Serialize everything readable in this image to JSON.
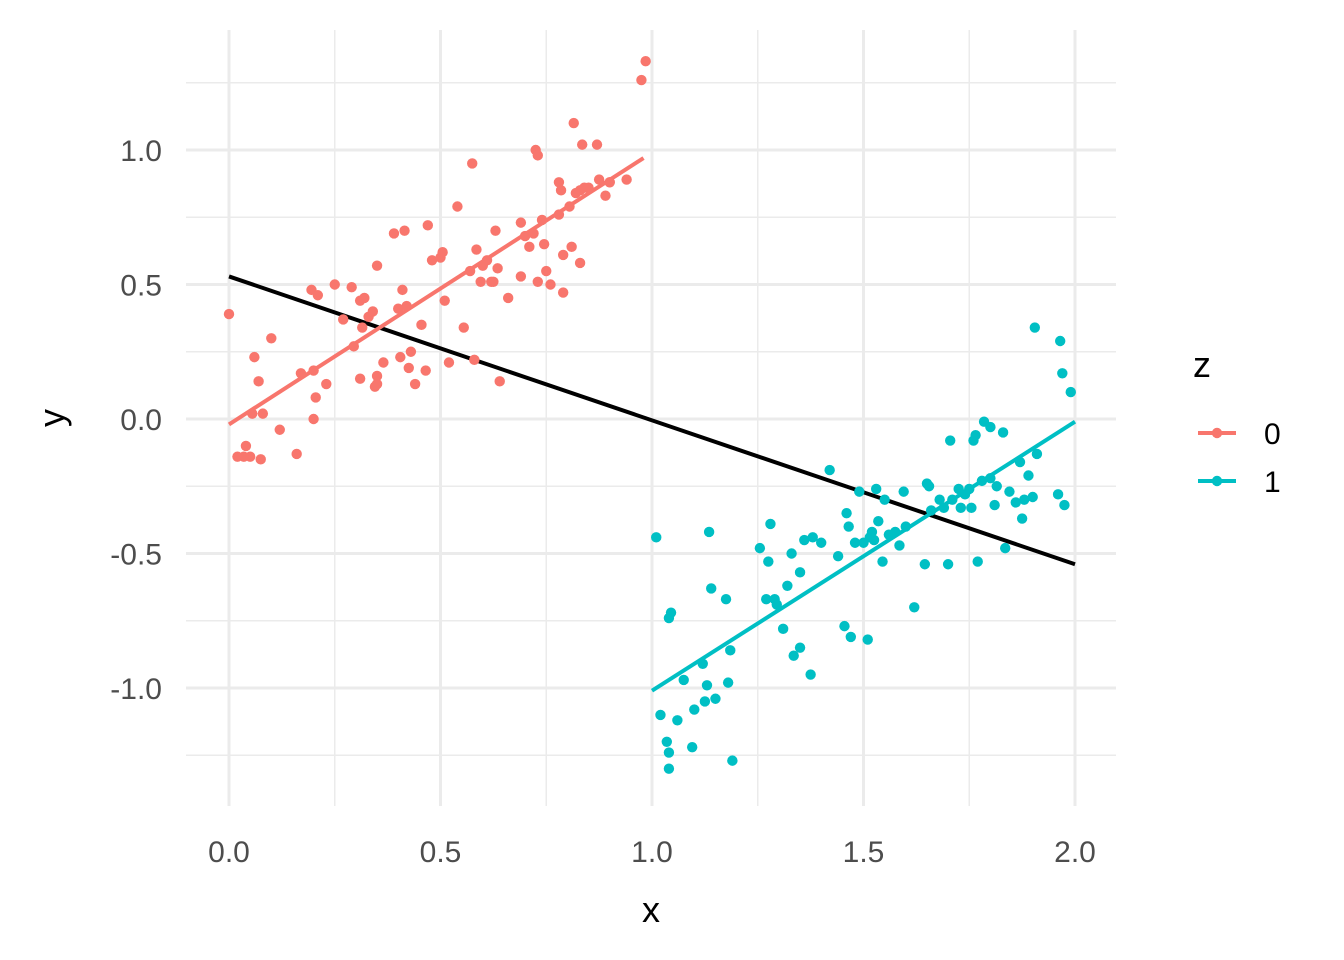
{
  "chart_data": {
    "type": "scatter",
    "title": "",
    "xlabel": "x",
    "ylabel": "y",
    "xlim": [
      0,
      2
    ],
    "ylim": [
      -1.32,
      1.36
    ],
    "x_ticks": [
      "0.0",
      "0.5",
      "1.0",
      "1.5",
      "2.0"
    ],
    "x_tick_values": [
      0,
      0.5,
      1.0,
      1.5,
      2.0
    ],
    "y_ticks": [
      "1.0",
      "0.5",
      "0.0",
      "-0.5",
      "-1.0"
    ],
    "y_tick_values": [
      1.0,
      0.5,
      0.0,
      -0.5,
      -1.0
    ],
    "grid": true,
    "legend": {
      "title": "z",
      "position": "right",
      "entries": [
        "0",
        "1"
      ]
    },
    "colors": {
      "0": "#F8766D",
      "1": "#00BFC4",
      "overall": "#000000"
    },
    "series": [
      {
        "name": "0",
        "points": [
          [
            0.0,
            0.39
          ],
          [
            0.02,
            -0.14
          ],
          [
            0.035,
            -0.14
          ],
          [
            0.04,
            -0.1
          ],
          [
            0.05,
            -0.14
          ],
          [
            0.055,
            0.02
          ],
          [
            0.06,
            0.23
          ],
          [
            0.07,
            0.14
          ],
          [
            0.075,
            -0.15
          ],
          [
            0.08,
            0.02
          ],
          [
            0.1,
            0.3
          ],
          [
            0.12,
            -0.04
          ],
          [
            0.16,
            -0.13
          ],
          [
            0.17,
            0.17
          ],
          [
            0.195,
            0.48
          ],
          [
            0.2,
            0.0
          ],
          [
            0.2,
            0.18
          ],
          [
            0.205,
            0.08
          ],
          [
            0.21,
            0.46
          ],
          [
            0.23,
            0.13
          ],
          [
            0.25,
            0.5
          ],
          [
            0.27,
            0.37
          ],
          [
            0.29,
            0.49
          ],
          [
            0.295,
            0.27
          ],
          [
            0.31,
            0.44
          ],
          [
            0.31,
            0.15
          ],
          [
            0.315,
            0.34
          ],
          [
            0.32,
            0.45
          ],
          [
            0.33,
            0.38
          ],
          [
            0.34,
            0.4
          ],
          [
            0.345,
            0.12
          ],
          [
            0.35,
            0.13
          ],
          [
            0.35,
            0.16
          ],
          [
            0.35,
            0.57
          ],
          [
            0.365,
            0.21
          ],
          [
            0.39,
            0.69
          ],
          [
            0.4,
            0.41
          ],
          [
            0.405,
            0.23
          ],
          [
            0.41,
            0.48
          ],
          [
            0.415,
            0.7
          ],
          [
            0.42,
            0.42
          ],
          [
            0.425,
            0.19
          ],
          [
            0.43,
            0.25
          ],
          [
            0.44,
            0.13
          ],
          [
            0.455,
            0.35
          ],
          [
            0.465,
            0.18
          ],
          [
            0.47,
            0.72
          ],
          [
            0.48,
            0.59
          ],
          [
            0.5,
            0.6
          ],
          [
            0.505,
            0.62
          ],
          [
            0.51,
            0.44
          ],
          [
            0.52,
            0.21
          ],
          [
            0.54,
            0.79
          ],
          [
            0.555,
            0.34
          ],
          [
            0.57,
            0.55
          ],
          [
            0.575,
            0.95
          ],
          [
            0.58,
            0.22
          ],
          [
            0.585,
            0.63
          ],
          [
            0.595,
            0.51
          ],
          [
            0.6,
            0.57
          ],
          [
            0.61,
            0.59
          ],
          [
            0.62,
            0.51
          ],
          [
            0.625,
            0.51
          ],
          [
            0.63,
            0.7
          ],
          [
            0.635,
            0.56
          ],
          [
            0.64,
            0.14
          ],
          [
            0.66,
            0.45
          ],
          [
            0.69,
            0.73
          ],
          [
            0.69,
            0.53
          ],
          [
            0.7,
            0.68
          ],
          [
            0.71,
            0.64
          ],
          [
            0.72,
            0.69
          ],
          [
            0.725,
            1.0
          ],
          [
            0.73,
            0.98
          ],
          [
            0.73,
            0.51
          ],
          [
            0.74,
            0.74
          ],
          [
            0.745,
            0.65
          ],
          [
            0.75,
            0.55
          ],
          [
            0.76,
            0.5
          ],
          [
            0.78,
            0.88
          ],
          [
            0.78,
            0.76
          ],
          [
            0.785,
            0.85
          ],
          [
            0.79,
            0.47
          ],
          [
            0.79,
            0.61
          ],
          [
            0.805,
            0.79
          ],
          [
            0.81,
            0.64
          ],
          [
            0.815,
            1.1
          ],
          [
            0.82,
            0.84
          ],
          [
            0.83,
            0.85
          ],
          [
            0.83,
            0.58
          ],
          [
            0.835,
            1.02
          ],
          [
            0.84,
            0.86
          ],
          [
            0.85,
            0.86
          ],
          [
            0.87,
            1.02
          ],
          [
            0.875,
            0.89
          ],
          [
            0.89,
            0.83
          ],
          [
            0.9,
            0.88
          ],
          [
            0.9,
            0.88
          ],
          [
            0.94,
            0.89
          ],
          [
            0.975,
            1.26
          ],
          [
            0.985,
            1.33
          ]
        ],
        "fit": {
          "x": [
            0.0,
            0.98
          ],
          "y": [
            -0.02,
            0.97
          ]
        }
      },
      {
        "name": "1",
        "points": [
          [
            1.01,
            -0.44
          ],
          [
            1.02,
            -1.1
          ],
          [
            1.035,
            -1.2
          ],
          [
            1.04,
            -1.3
          ],
          [
            1.04,
            -1.24
          ],
          [
            1.04,
            -0.74
          ],
          [
            1.045,
            -0.72
          ],
          [
            1.06,
            -1.12
          ],
          [
            1.075,
            -0.97
          ],
          [
            1.095,
            -1.22
          ],
          [
            1.1,
            -1.08
          ],
          [
            1.12,
            -0.91
          ],
          [
            1.125,
            -1.05
          ],
          [
            1.13,
            -0.99
          ],
          [
            1.135,
            -0.42
          ],
          [
            1.14,
            -0.63
          ],
          [
            1.15,
            -1.04
          ],
          [
            1.175,
            -0.67
          ],
          [
            1.18,
            -0.98
          ],
          [
            1.185,
            -0.86
          ],
          [
            1.19,
            -1.27
          ],
          [
            1.255,
            -0.48
          ],
          [
            1.27,
            -0.67
          ],
          [
            1.275,
            -0.53
          ],
          [
            1.28,
            -0.39
          ],
          [
            1.29,
            -0.67
          ],
          [
            1.295,
            -0.69
          ],
          [
            1.31,
            -0.78
          ],
          [
            1.32,
            -0.62
          ],
          [
            1.33,
            -0.5
          ],
          [
            1.335,
            -0.88
          ],
          [
            1.35,
            -0.85
          ],
          [
            1.35,
            -0.57
          ],
          [
            1.36,
            -0.45
          ],
          [
            1.375,
            -0.95
          ],
          [
            1.38,
            -0.44
          ],
          [
            1.4,
            -0.46
          ],
          [
            1.42,
            -0.19
          ],
          [
            1.44,
            -0.51
          ],
          [
            1.455,
            -0.77
          ],
          [
            1.46,
            -0.35
          ],
          [
            1.465,
            -0.4
          ],
          [
            1.47,
            -0.81
          ],
          [
            1.48,
            -0.46
          ],
          [
            1.49,
            -0.27
          ],
          [
            1.5,
            -0.46
          ],
          [
            1.51,
            -0.82
          ],
          [
            1.515,
            -0.44
          ],
          [
            1.52,
            -0.42
          ],
          [
            1.525,
            -0.45
          ],
          [
            1.53,
            -0.26
          ],
          [
            1.535,
            -0.38
          ],
          [
            1.545,
            -0.53
          ],
          [
            1.55,
            -0.3
          ],
          [
            1.56,
            -0.43
          ],
          [
            1.575,
            -0.42
          ],
          [
            1.585,
            -0.47
          ],
          [
            1.595,
            -0.27
          ],
          [
            1.6,
            -0.4
          ],
          [
            1.62,
            -0.7
          ],
          [
            1.645,
            -0.54
          ],
          [
            1.65,
            -0.24
          ],
          [
            1.655,
            -0.25
          ],
          [
            1.66,
            -0.34
          ],
          [
            1.68,
            -0.3
          ],
          [
            1.69,
            -0.33
          ],
          [
            1.7,
            -0.54
          ],
          [
            1.705,
            -0.08
          ],
          [
            1.71,
            -0.3
          ],
          [
            1.725,
            -0.26
          ],
          [
            1.73,
            -0.33
          ],
          [
            1.74,
            -0.28
          ],
          [
            1.75,
            -0.26
          ],
          [
            1.755,
            -0.33
          ],
          [
            1.76,
            -0.08
          ],
          [
            1.765,
            -0.06
          ],
          [
            1.77,
            -0.53
          ],
          [
            1.78,
            -0.23
          ],
          [
            1.785,
            -0.01
          ],
          [
            1.8,
            -0.03
          ],
          [
            1.8,
            -0.22
          ],
          [
            1.81,
            -0.32
          ],
          [
            1.815,
            -0.25
          ],
          [
            1.83,
            -0.05
          ],
          [
            1.835,
            -0.48
          ],
          [
            1.845,
            -0.27
          ],
          [
            1.86,
            -0.31
          ],
          [
            1.87,
            -0.16
          ],
          [
            1.875,
            -0.37
          ],
          [
            1.88,
            -0.3
          ],
          [
            1.89,
            -0.21
          ],
          [
            1.9,
            -0.29
          ],
          [
            1.905,
            0.34
          ],
          [
            1.91,
            -0.13
          ],
          [
            1.96,
            -0.28
          ],
          [
            1.965,
            0.29
          ],
          [
            1.97,
            0.17
          ],
          [
            1.975,
            -0.32
          ],
          [
            1.99,
            0.1
          ]
        ],
        "fit": {
          "x": [
            1.0,
            2.0
          ],
          "y": [
            -1.01,
            -0.01
          ]
        }
      }
    ],
    "overall_fit": {
      "x": [
        0.0,
        2.0
      ],
      "y": [
        0.53,
        -0.54
      ]
    }
  }
}
